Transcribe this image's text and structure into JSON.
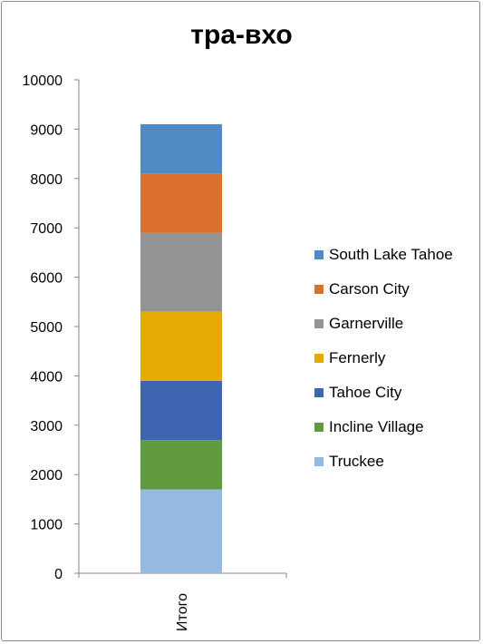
{
  "chart_data": {
    "type": "bar",
    "stacked": true,
    "title": "тра-вхо",
    "categories": [
      "Итого"
    ],
    "ylim": [
      0,
      10000
    ],
    "yticks": [
      0,
      1000,
      2000,
      3000,
      4000,
      5000,
      6000,
      7000,
      8000,
      9000,
      10000
    ],
    "grid": false,
    "legend_position": "right",
    "series": [
      {
        "name": "Truckee",
        "values": [
          1700
        ],
        "color": "#95b9e0"
      },
      {
        "name": "Incline Village",
        "values": [
          1000
        ],
        "color": "#5f9b3f"
      },
      {
        "name": "Tahoe City",
        "values": [
          1200
        ],
        "color": "#3d65b0"
      },
      {
        "name": "Fernerly",
        "values": [
          1400
        ],
        "color": "#e5ab00"
      },
      {
        "name": "Garnerville",
        "values": [
          1600
        ],
        "color": "#949494"
      },
      {
        "name": "Carson City",
        "values": [
          1200
        ],
        "color": "#d9702c"
      },
      {
        "name": "South Lake Tahoe",
        "values": [
          1000
        ],
        "color": "#4f8bc4"
      }
    ]
  }
}
